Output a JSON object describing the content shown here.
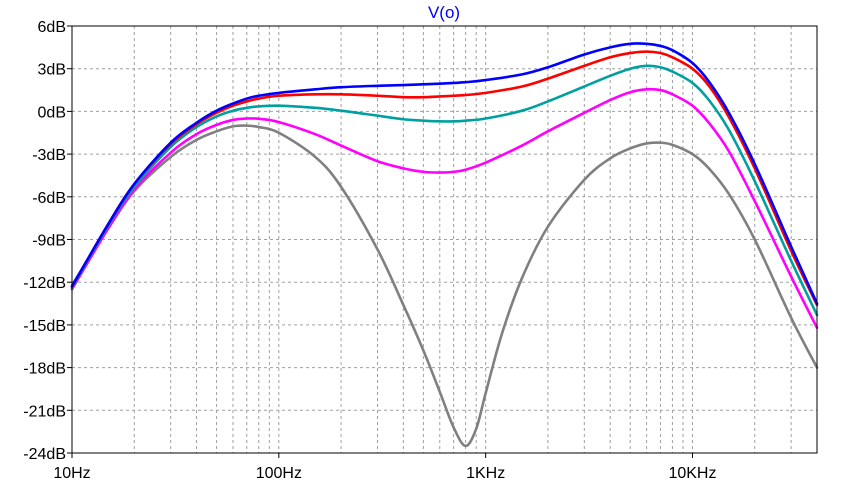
{
  "chart_data": {
    "type": "line",
    "title": "V(o)",
    "xscale": "log",
    "xlim": [
      10,
      40000
    ],
    "ylim": [
      -24,
      6
    ],
    "grid": true,
    "x_ticks": [
      {
        "value": 10,
        "label": "10Hz"
      },
      {
        "value": 100,
        "label": "100Hz"
      },
      {
        "value": 1000,
        "label": "1KHz"
      },
      {
        "value": 10000,
        "label": "10KHz"
      }
    ],
    "y_ticks": [
      {
        "value": 6,
        "label": "6dB"
      },
      {
        "value": 3,
        "label": "3dB"
      },
      {
        "value": 0,
        "label": "0dB"
      },
      {
        "value": -3,
        "label": "-3dB"
      },
      {
        "value": -6,
        "label": "-6dB"
      },
      {
        "value": -9,
        "label": "-9dB"
      },
      {
        "value": -12,
        "label": "-12dB"
      },
      {
        "value": -15,
        "label": "-15dB"
      },
      {
        "value": -18,
        "label": "-18dB"
      },
      {
        "value": -21,
        "label": "-21dB"
      },
      {
        "value": -24,
        "label": "-24dB"
      }
    ],
    "colors": {
      "grid": "#a0a0a0",
      "frame": "#000000",
      "title": "#0000ff"
    },
    "series": [
      {
        "color": "#808080",
        "points": [
          [
            10,
            -12.2
          ],
          [
            15,
            -8.2
          ],
          [
            20,
            -5.6
          ],
          [
            30,
            -3.2
          ],
          [
            40,
            -2.0
          ],
          [
            50,
            -1.4
          ],
          [
            60,
            -1.05
          ],
          [
            70,
            -1.0
          ],
          [
            80,
            -1.1
          ],
          [
            100,
            -1.5
          ],
          [
            150,
            -3.2
          ],
          [
            200,
            -5.3
          ],
          [
            300,
            -9.7
          ],
          [
            400,
            -13.6
          ],
          [
            500,
            -16.8
          ],
          [
            600,
            -19.7
          ],
          [
            700,
            -22.2
          ],
          [
            800,
            -23.5
          ],
          [
            900,
            -22.3
          ],
          [
            1000,
            -19.8
          ],
          [
            1200,
            -15.6
          ],
          [
            1500,
            -11.7
          ],
          [
            2000,
            -8.1
          ],
          [
            3000,
            -4.8
          ],
          [
            4000,
            -3.3
          ],
          [
            5000,
            -2.6
          ],
          [
            6000,
            -2.25
          ],
          [
            7000,
            -2.2
          ],
          [
            8000,
            -2.35
          ],
          [
            10000,
            -3.0
          ],
          [
            12000,
            -4.0
          ],
          [
            15000,
            -5.8
          ],
          [
            20000,
            -9.0
          ],
          [
            30000,
            -14.5
          ],
          [
            40000,
            -18.0
          ]
        ]
      },
      {
        "color": "#ff00ff",
        "points": [
          [
            10,
            -12.5
          ],
          [
            15,
            -8.2
          ],
          [
            20,
            -5.5
          ],
          [
            30,
            -2.9
          ],
          [
            40,
            -1.6
          ],
          [
            50,
            -0.95
          ],
          [
            60,
            -0.6
          ],
          [
            70,
            -0.5
          ],
          [
            80,
            -0.52
          ],
          [
            100,
            -0.75
          ],
          [
            150,
            -1.6
          ],
          [
            200,
            -2.4
          ],
          [
            300,
            -3.5
          ],
          [
            400,
            -4.0
          ],
          [
            500,
            -4.25
          ],
          [
            600,
            -4.3
          ],
          [
            700,
            -4.25
          ],
          [
            800,
            -4.1
          ],
          [
            1000,
            -3.6
          ],
          [
            1500,
            -2.4
          ],
          [
            2000,
            -1.4
          ],
          [
            3000,
            -0.1
          ],
          [
            4000,
            0.8
          ],
          [
            5000,
            1.35
          ],
          [
            6000,
            1.55
          ],
          [
            7000,
            1.5
          ],
          [
            8000,
            1.2
          ],
          [
            10000,
            0.4
          ],
          [
            12000,
            -0.8
          ],
          [
            15000,
            -2.8
          ],
          [
            20000,
            -6.3
          ],
          [
            30000,
            -11.6
          ],
          [
            40000,
            -15.2
          ]
        ]
      },
      {
        "color": "#00a0a0",
        "points": [
          [
            10,
            -12.4
          ],
          [
            15,
            -8.0
          ],
          [
            20,
            -5.3
          ],
          [
            30,
            -2.5
          ],
          [
            40,
            -1.1
          ],
          [
            50,
            -0.35
          ],
          [
            60,
            0.05
          ],
          [
            70,
            0.25
          ],
          [
            80,
            0.35
          ],
          [
            100,
            0.4
          ],
          [
            150,
            0.25
          ],
          [
            200,
            0.05
          ],
          [
            300,
            -0.3
          ],
          [
            400,
            -0.55
          ],
          [
            500,
            -0.65
          ],
          [
            600,
            -0.7
          ],
          [
            700,
            -0.7
          ],
          [
            800,
            -0.65
          ],
          [
            1000,
            -0.5
          ],
          [
            1500,
            0.05
          ],
          [
            2000,
            0.7
          ],
          [
            3000,
            1.75
          ],
          [
            4000,
            2.5
          ],
          [
            5000,
            3.0
          ],
          [
            6000,
            3.2
          ],
          [
            7000,
            3.1
          ],
          [
            8000,
            2.8
          ],
          [
            10000,
            2.0
          ],
          [
            12000,
            0.8
          ],
          [
            15000,
            -1.3
          ],
          [
            20000,
            -4.9
          ],
          [
            30000,
            -10.5
          ],
          [
            40000,
            -14.3
          ]
        ]
      },
      {
        "color": "#ff0000",
        "points": [
          [
            10,
            -12.3
          ],
          [
            15,
            -7.9
          ],
          [
            20,
            -5.1
          ],
          [
            30,
            -2.3
          ],
          [
            40,
            -0.9
          ],
          [
            50,
            -0.1
          ],
          [
            60,
            0.4
          ],
          [
            70,
            0.7
          ],
          [
            80,
            0.9
          ],
          [
            100,
            1.1
          ],
          [
            150,
            1.2
          ],
          [
            200,
            1.2
          ],
          [
            300,
            1.1
          ],
          [
            400,
            1.0
          ],
          [
            500,
            1.0
          ],
          [
            600,
            1.05
          ],
          [
            700,
            1.1
          ],
          [
            800,
            1.15
          ],
          [
            1000,
            1.3
          ],
          [
            1500,
            1.75
          ],
          [
            2000,
            2.3
          ],
          [
            3000,
            3.2
          ],
          [
            4000,
            3.8
          ],
          [
            5000,
            4.1
          ],
          [
            6000,
            4.2
          ],
          [
            7000,
            4.1
          ],
          [
            8000,
            3.8
          ],
          [
            10000,
            3.0
          ],
          [
            12000,
            1.8
          ],
          [
            15000,
            -0.4
          ],
          [
            20000,
            -4.0
          ],
          [
            30000,
            -9.8
          ],
          [
            40000,
            -13.6
          ]
        ]
      },
      {
        "color": "#0000ff",
        "points": [
          [
            10,
            -12.3
          ],
          [
            15,
            -7.9
          ],
          [
            20,
            -5.1
          ],
          [
            30,
            -2.2
          ],
          [
            40,
            -0.8
          ],
          [
            50,
            0.05
          ],
          [
            60,
            0.55
          ],
          [
            70,
            0.9
          ],
          [
            80,
            1.1
          ],
          [
            100,
            1.3
          ],
          [
            150,
            1.55
          ],
          [
            200,
            1.7
          ],
          [
            300,
            1.8
          ],
          [
            400,
            1.85
          ],
          [
            500,
            1.9
          ],
          [
            600,
            1.95
          ],
          [
            700,
            2.0
          ],
          [
            800,
            2.05
          ],
          [
            1000,
            2.2
          ],
          [
            1500,
            2.6
          ],
          [
            2000,
            3.1
          ],
          [
            3000,
            4.0
          ],
          [
            4000,
            4.5
          ],
          [
            5000,
            4.75
          ],
          [
            6000,
            4.75
          ],
          [
            7000,
            4.6
          ],
          [
            8000,
            4.3
          ],
          [
            10000,
            3.4
          ],
          [
            12000,
            2.1
          ],
          [
            15000,
            -0.1
          ],
          [
            20000,
            -3.7
          ],
          [
            30000,
            -9.5
          ],
          [
            40000,
            -13.5
          ]
        ]
      }
    ]
  }
}
